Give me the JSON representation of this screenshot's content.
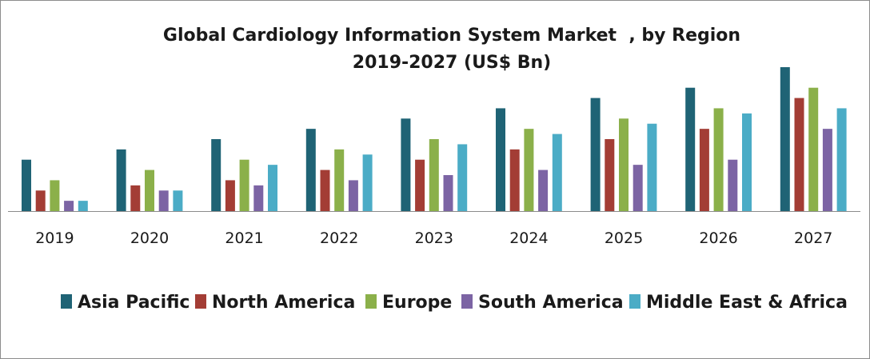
{
  "chart_data": {
    "type": "bar",
    "title": "Global Cardiology Information System Market  , by Region",
    "subtitle": "2019-2027 (US$ Bn)",
    "xlabel": "",
    "ylabel": "",
    "categories": [
      "2019",
      "2020",
      "2021",
      "2022",
      "2023",
      "2024",
      "2025",
      "2026",
      "2027"
    ],
    "series": [
      {
        "name": "Asia Pacific",
        "color": "#1f6375",
        "values": [
          5,
          6,
          7,
          8,
          9,
          10,
          11,
          12,
          14
        ]
      },
      {
        "name": "North America",
        "color": "#a33d35",
        "values": [
          2,
          2.5,
          3,
          4,
          5,
          6,
          7,
          8,
          11
        ]
      },
      {
        "name": "Europe",
        "color": "#8bb04a",
        "values": [
          3,
          4,
          5,
          6,
          7,
          8,
          9,
          10,
          12
        ]
      },
      {
        "name": "South America",
        "color": "#7c64a4",
        "values": [
          1,
          2,
          2.5,
          3,
          3.5,
          4,
          4.5,
          5,
          8
        ]
      },
      {
        "name": "Middle East & Africa",
        "color": "#4bacc6",
        "values": [
          1,
          2,
          4.5,
          5.5,
          6.5,
          7.5,
          8.5,
          9.5,
          10
        ]
      }
    ],
    "ylim": [
      0,
      14
    ],
    "grid": false,
    "legend": "bottom"
  }
}
